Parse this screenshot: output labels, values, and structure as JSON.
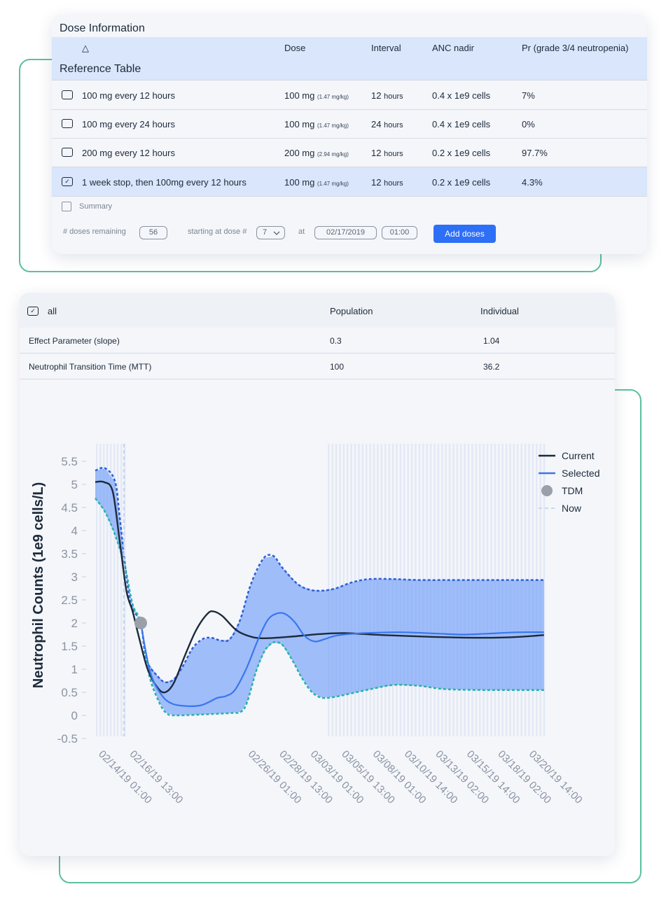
{
  "colors": {
    "accent": "#2d6ff7",
    "band": "#7ea6f8",
    "current": "#1c2a3a",
    "selected": "#3a76ee",
    "lower_dash": "#27b2a8",
    "upper_dash": "#2d5fd8",
    "tdm": "#9aa0aa",
    "deco": "#5bc0a0"
  },
  "dose": {
    "title": "Dose Information",
    "sort_icon": "triangle-up-icon",
    "headers": {
      "sort_glyph": "△",
      "dose": "Dose",
      "interval": "Interval",
      "anc": "ANC nadir",
      "pr": "Pr (grade 3/4 neutropenia)"
    },
    "reference_title": "Reference Table",
    "rows": [
      {
        "name": "100 mg every 12 hours",
        "dose": "100 mg",
        "dose_sub": "(1.47 mg/kg)",
        "interval": "12",
        "interval_unit": "hours",
        "anc": "0.4 x 1e9 cells",
        "pr": "7%",
        "checked": false,
        "check_glyph": ""
      },
      {
        "name": "100 mg every 24 hours",
        "dose": "100 mg",
        "dose_sub": "(1.47 mg/kg)",
        "interval": "24",
        "interval_unit": "hours",
        "anc": "0.4 x 1e9 cells",
        "pr": "0%",
        "checked": false,
        "check_glyph": ""
      },
      {
        "name": "200 mg every 12 hours",
        "dose": "200 mg",
        "dose_sub": "(2.94 mg/kg)",
        "interval": "12",
        "interval_unit": "hours",
        "anc": "0.2 x 1e9 cells",
        "pr": "97.7%",
        "checked": false,
        "check_glyph": ""
      },
      {
        "name": "1 week stop, then 100mg every 12 hours",
        "dose": "100 mg",
        "dose_sub": "(1.47 mg/kg)",
        "interval": "12",
        "interval_unit": "hours",
        "anc": "0.2 x 1e9 cells",
        "pr": "4.3%",
        "checked": true,
        "check_glyph": "✓"
      }
    ],
    "summary_label": "Summary",
    "controls": {
      "doses_remaining_label": "# doses remaining",
      "doses_remaining_value": "56",
      "starting_at_label": "starting at dose #",
      "starting_at_value": "7",
      "at_label": "at",
      "date_value": "02/17/2019",
      "time_value": "01:00",
      "add_button": "Add doses"
    }
  },
  "effect": {
    "header": {
      "all_label": "all",
      "all_check_glyph": "✓",
      "population": "Population",
      "individual": "Individual"
    },
    "rows": [
      {
        "name": "Effect Parameter (slope)",
        "population": "0.3",
        "individual": "1.04"
      },
      {
        "name": "Neutrophil Transition Time (MTT)",
        "population": "100",
        "individual": "36.2"
      }
    ]
  },
  "chart_data": {
    "type": "line",
    "ylabel": "Neutrophil Counts (1e9 cells/L)",
    "ylim": [
      -0.5,
      5.5
    ],
    "yticks": [
      "5.5",
      "5",
      "4.5",
      "4",
      "3.5",
      "3",
      "2.5",
      "2",
      "1.5",
      "1",
      "0.5",
      "0",
      "-0.5"
    ],
    "xticks": [
      "02/14/19 01:00",
      "02/16/19 13:00",
      "02/26/19 01:00",
      "02/28/19 13:00",
      "03/03/19 01:00",
      "03/05/19 13:00",
      "03/08/19 01:00",
      "03/10/19 14:00",
      "03/13/19 02:00",
      "03/15/19 14:00",
      "03/18/19 02:00",
      "03/20/19 14:00"
    ],
    "x_days": [
      0,
      2.5,
      12,
      14.5,
      17,
      19.5,
      22,
      24.54,
      27.04,
      29.54,
      32.04,
      34.54
    ],
    "legend": {
      "position": "top-right",
      "items": [
        "Current",
        "Selected",
        "TDM",
        "Now"
      ]
    },
    "now_day": 2.3,
    "tdm": [
      {
        "day": 3.65,
        "value": 2.0
      }
    ],
    "series": [
      {
        "name": "Current",
        "points": [
          [
            0,
            5.05
          ],
          [
            0.7,
            5.05
          ],
          [
            1.4,
            4.85
          ],
          [
            1.95,
            3.8
          ],
          [
            2.5,
            2.7
          ],
          [
            3.0,
            2.25
          ],
          [
            3.5,
            1.7
          ],
          [
            4.2,
            1.0
          ],
          [
            5.0,
            0.6
          ],
          [
            5.6,
            0.5
          ],
          [
            6.3,
            0.7
          ],
          [
            7.2,
            1.3
          ],
          [
            8.1,
            1.85
          ],
          [
            9.0,
            2.2
          ],
          [
            9.5,
            2.25
          ],
          [
            10.2,
            2.15
          ],
          [
            11.3,
            1.85
          ],
          [
            12.3,
            1.72
          ],
          [
            13.4,
            1.67
          ],
          [
            15.5,
            1.7
          ],
          [
            18,
            1.76
          ],
          [
            20,
            1.78
          ],
          [
            23,
            1.74
          ],
          [
            27,
            1.7
          ],
          [
            31,
            1.68
          ],
          [
            34,
            1.7
          ],
          [
            36,
            1.74
          ]
        ]
      },
      {
        "name": "Selected",
        "points": [
          [
            3.65,
            2.0
          ],
          [
            4.4,
            0.95
          ],
          [
            5.3,
            0.45
          ],
          [
            6.2,
            0.25
          ],
          [
            7.5,
            0.2
          ],
          [
            8.5,
            0.22
          ],
          [
            9.2,
            0.3
          ],
          [
            9.8,
            0.38
          ],
          [
            10.5,
            0.42
          ],
          [
            11.2,
            0.55
          ],
          [
            12.1,
            1.0
          ],
          [
            13.0,
            1.6
          ],
          [
            13.8,
            2.05
          ],
          [
            14.5,
            2.2
          ],
          [
            15.2,
            2.2
          ],
          [
            16.0,
            2.02
          ],
          [
            16.8,
            1.72
          ],
          [
            17.6,
            1.6
          ],
          [
            18.4,
            1.65
          ],
          [
            19.4,
            1.73
          ],
          [
            21.5,
            1.78
          ],
          [
            24.5,
            1.8
          ],
          [
            27.5,
            1.77
          ],
          [
            29.5,
            1.75
          ],
          [
            31.5,
            1.77
          ],
          [
            34,
            1.8
          ],
          [
            36,
            1.8
          ]
        ]
      },
      {
        "name": "Upper",
        "points": [
          [
            0,
            5.3
          ],
          [
            0.8,
            5.35
          ],
          [
            1.6,
            5.05
          ],
          [
            2.0,
            4.2
          ],
          [
            2.6,
            2.8
          ],
          [
            3.0,
            2.3
          ],
          [
            3.65,
            2.0
          ],
          [
            4.1,
            1.2
          ],
          [
            5.0,
            0.85
          ],
          [
            5.6,
            0.72
          ],
          [
            6.3,
            0.78
          ],
          [
            7.0,
            1.05
          ],
          [
            7.8,
            1.45
          ],
          [
            8.6,
            1.65
          ],
          [
            9.3,
            1.68
          ],
          [
            10.1,
            1.62
          ],
          [
            10.8,
            1.65
          ],
          [
            11.6,
            2.05
          ],
          [
            12.5,
            2.85
          ],
          [
            13.5,
            3.4
          ],
          [
            14.3,
            3.45
          ],
          [
            15.0,
            3.2
          ],
          [
            16.2,
            2.85
          ],
          [
            17.2,
            2.72
          ],
          [
            18.2,
            2.7
          ],
          [
            19.3,
            2.75
          ],
          [
            20.6,
            2.88
          ],
          [
            22,
            2.95
          ],
          [
            24,
            2.95
          ],
          [
            26,
            2.93
          ],
          [
            30,
            2.93
          ],
          [
            36,
            2.93
          ]
        ]
      },
      {
        "name": "Lower",
        "points": [
          [
            0,
            4.7
          ],
          [
            0.8,
            4.4
          ],
          [
            1.6,
            3.9
          ],
          [
            2.4,
            3.2
          ],
          [
            3.0,
            2.4
          ],
          [
            3.65,
            2.0
          ],
          [
            4.3,
            0.9
          ],
          [
            5.1,
            0.3
          ],
          [
            5.7,
            0.05
          ],
          [
            6.4,
            0.0
          ],
          [
            8.5,
            0.02
          ],
          [
            10.8,
            0.05
          ],
          [
            11.7,
            0.08
          ],
          [
            12.2,
            0.3
          ],
          [
            12.9,
            0.95
          ],
          [
            13.6,
            1.4
          ],
          [
            14.3,
            1.58
          ],
          [
            15.0,
            1.53
          ],
          [
            15.8,
            1.2
          ],
          [
            16.6,
            0.8
          ],
          [
            17.4,
            0.5
          ],
          [
            18.2,
            0.38
          ],
          [
            19.2,
            0.4
          ],
          [
            20.6,
            0.48
          ],
          [
            22.3,
            0.58
          ],
          [
            24,
            0.66
          ],
          [
            26,
            0.64
          ],
          [
            28,
            0.57
          ],
          [
            31,
            0.55
          ],
          [
            36,
            0.55
          ]
        ]
      }
    ]
  }
}
